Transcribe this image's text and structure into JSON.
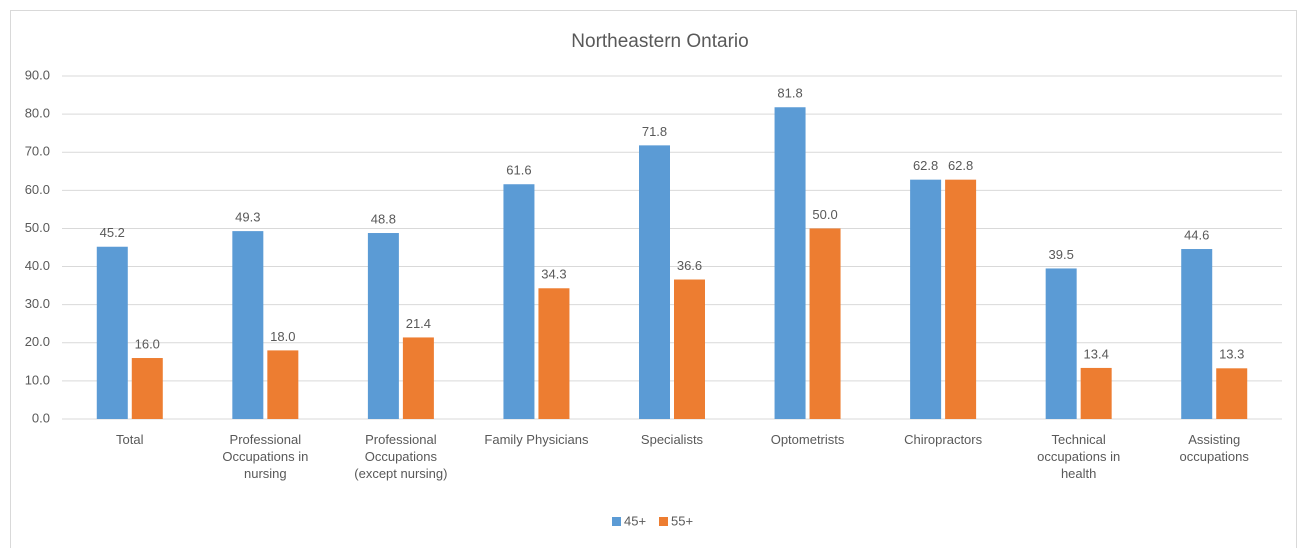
{
  "chart_data": {
    "type": "bar",
    "title": "Northeastern Ontario",
    "categories": [
      "Total",
      "Professional Occupations in nursing",
      "Professional Occupations (except nursing)",
      "Family Physicians",
      "Specialists",
      "Optometrists",
      "Chiropractors",
      "Technical occupations in health",
      "Assisting occupations"
    ],
    "series": [
      {
        "name": "45+",
        "color": "#5b9bd5",
        "values": [
          45.2,
          49.3,
          48.8,
          61.6,
          71.8,
          81.8,
          62.8,
          39.5,
          44.6
        ],
        "value_labels": [
          "45.2",
          "49.3",
          "48.8",
          "61.6",
          "71.8",
          "81.8",
          "62.8",
          "39.5",
          "44.6"
        ]
      },
      {
        "name": "55+",
        "color": "#ed7d31",
        "values": [
          16.0,
          18.0,
          21.4,
          34.3,
          36.6,
          50.0,
          62.8,
          13.4,
          13.3
        ],
        "value_labels": [
          "16.0",
          "18.0",
          "21.4",
          "34.3",
          "36.6",
          "50.0",
          "62.8",
          "13.4",
          "13.3"
        ]
      }
    ],
    "ylim": [
      0,
      90
    ],
    "yticks": [
      {
        "value": 0,
        "label": "0.0"
      },
      {
        "value": 10,
        "label": "10.0"
      },
      {
        "value": 20,
        "label": "20.0"
      },
      {
        "value": 30,
        "label": "30.0"
      },
      {
        "value": 40,
        "label": "40.0"
      },
      {
        "value": 50,
        "label": "50.0"
      },
      {
        "value": 60,
        "label": "60.0"
      },
      {
        "value": 70,
        "label": "70.0"
      },
      {
        "value": 80,
        "label": "80.0"
      },
      {
        "value": 90,
        "label": "90.0"
      }
    ],
    "grid": true,
    "legend": "bottom"
  }
}
